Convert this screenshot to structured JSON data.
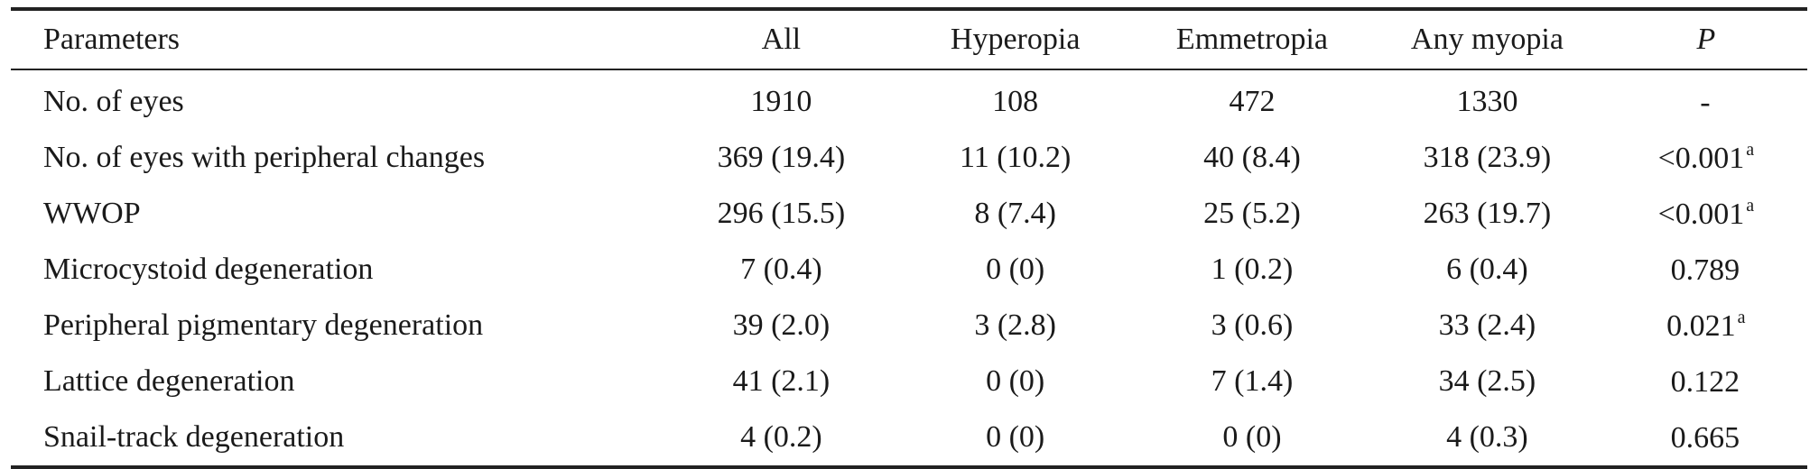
{
  "table": {
    "headers": [
      "Parameters",
      "All",
      "Hyperopia",
      "Emmetropia",
      "Any myopia",
      "P"
    ],
    "rows": [
      {
        "label": "No. of eyes",
        "all": "1910",
        "hyperopia": "108",
        "emmetropia": "472",
        "myopia": "1330",
        "p": "-",
        "p_sup": ""
      },
      {
        "label": "No. of eyes with peripheral changes",
        "all": "369 (19.4)",
        "hyperopia": "11 (10.2)",
        "emmetropia": "40 (8.4)",
        "myopia": "318 (23.9)",
        "p": "<0.001",
        "p_sup": "a"
      },
      {
        "label": "WWOP",
        "all": "296 (15.5)",
        "hyperopia": "8 (7.4)",
        "emmetropia": "25 (5.2)",
        "myopia": "263 (19.7)",
        "p": "<0.001",
        "p_sup": "a"
      },
      {
        "label": "Microcystoid degeneration",
        "all": "7 (0.4)",
        "hyperopia": "0 (0)",
        "emmetropia": "1 (0.2)",
        "myopia": "6 (0.4)",
        "p": "0.789",
        "p_sup": ""
      },
      {
        "label": "Peripheral pigmentary degeneration",
        "all": "39 (2.0)",
        "hyperopia": "3 (2.8)",
        "emmetropia": "3 (0.6)",
        "myopia": "33 (2.4)",
        "p": "0.021",
        "p_sup": "a"
      },
      {
        "label": "Lattice degeneration",
        "all": "41 (2.1)",
        "hyperopia": "0 (0)",
        "emmetropia": "7 (1.4)",
        "myopia": "34 (2.5)",
        "p": "0.122",
        "p_sup": ""
      },
      {
        "label": "Snail-track degeneration",
        "all": "4 (0.2)",
        "hyperopia": "0 (0)",
        "emmetropia": "0 (0)",
        "myopia": "4 (0.3)",
        "p": "0.665",
        "p_sup": ""
      }
    ]
  }
}
